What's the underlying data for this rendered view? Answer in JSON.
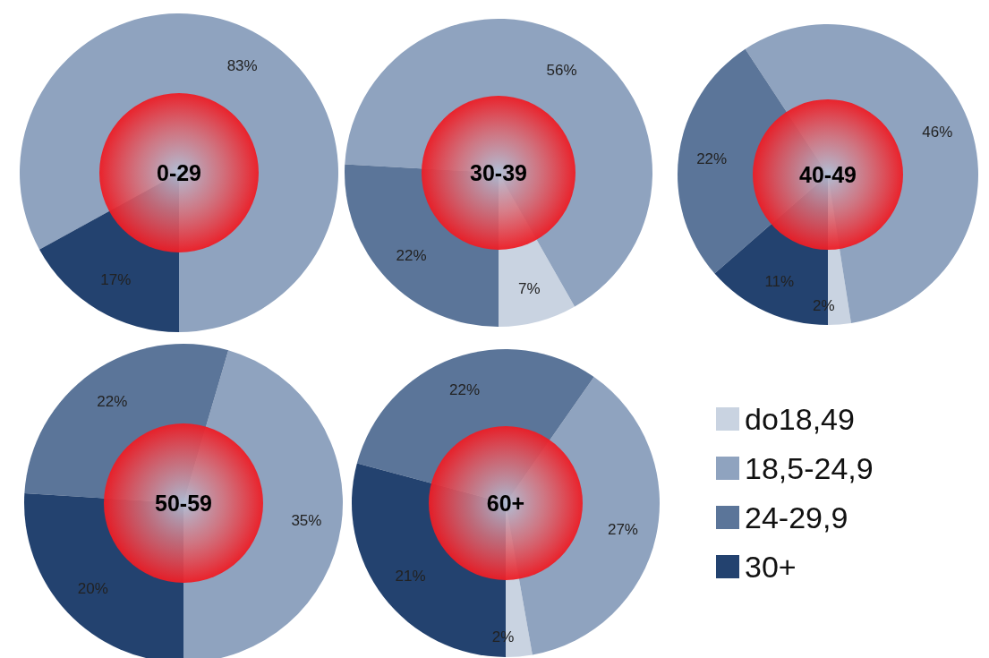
{
  "chart_data": [
    {
      "type": "pie",
      "title": "0-29",
      "categories": [
        "do18,49",
        "18,5-24,9",
        "24-29,9",
        "30+"
      ],
      "values": [
        null,
        83,
        null,
        17
      ],
      "value_labels": [
        null,
        "83%",
        null,
        "17%"
      ],
      "colors": [
        "#c9d3e1",
        "#8fa3bf",
        "#5b7599",
        "#23426f"
      ],
      "legend": "bottom right"
    },
    {
      "type": "pie",
      "title": "30-39",
      "categories": [
        null,
        null,
        null,
        null
      ],
      "values": [
        7,
        56,
        22,
        null
      ],
      "value_labels": [
        "7%",
        "56%",
        "22%",
        null
      ],
      "colors": [
        "#c9d3e1",
        "#8fa3bf",
        "#5b7599",
        null
      ]
    },
    {
      "type": "pie",
      "title": "40-49",
      "categories": [
        null,
        null,
        null,
        null
      ],
      "values": [
        2,
        46,
        22,
        11
      ],
      "value_labels": [
        "2%",
        "46%",
        "22%",
        "11%"
      ],
      "colors": [
        "#c9d3e1",
        "#8fa3bf",
        "#5b7599",
        "#23426f"
      ]
    },
    {
      "type": "pie",
      "title": "50-59",
      "categories": [
        null,
        null,
        null,
        null
      ],
      "values": [
        null,
        35,
        22,
        20
      ],
      "value_labels": [
        null,
        "35%",
        "22%",
        "20%"
      ],
      "colors": [
        null,
        "#8fa3bf",
        "#5b7599",
        "#23426f"
      ]
    },
    {
      "type": "pie",
      "title": "60+",
      "categories": [
        null,
        null,
        null,
        null
      ],
      "values": [
        2,
        27,
        22,
        21
      ],
      "value_labels": [
        "2%",
        "27%",
        "22%",
        "21%"
      ],
      "colors": [
        "#c9d3e1",
        "#8fa3bf",
        "#5b7599",
        "#23426f"
      ]
    }
  ]
}
